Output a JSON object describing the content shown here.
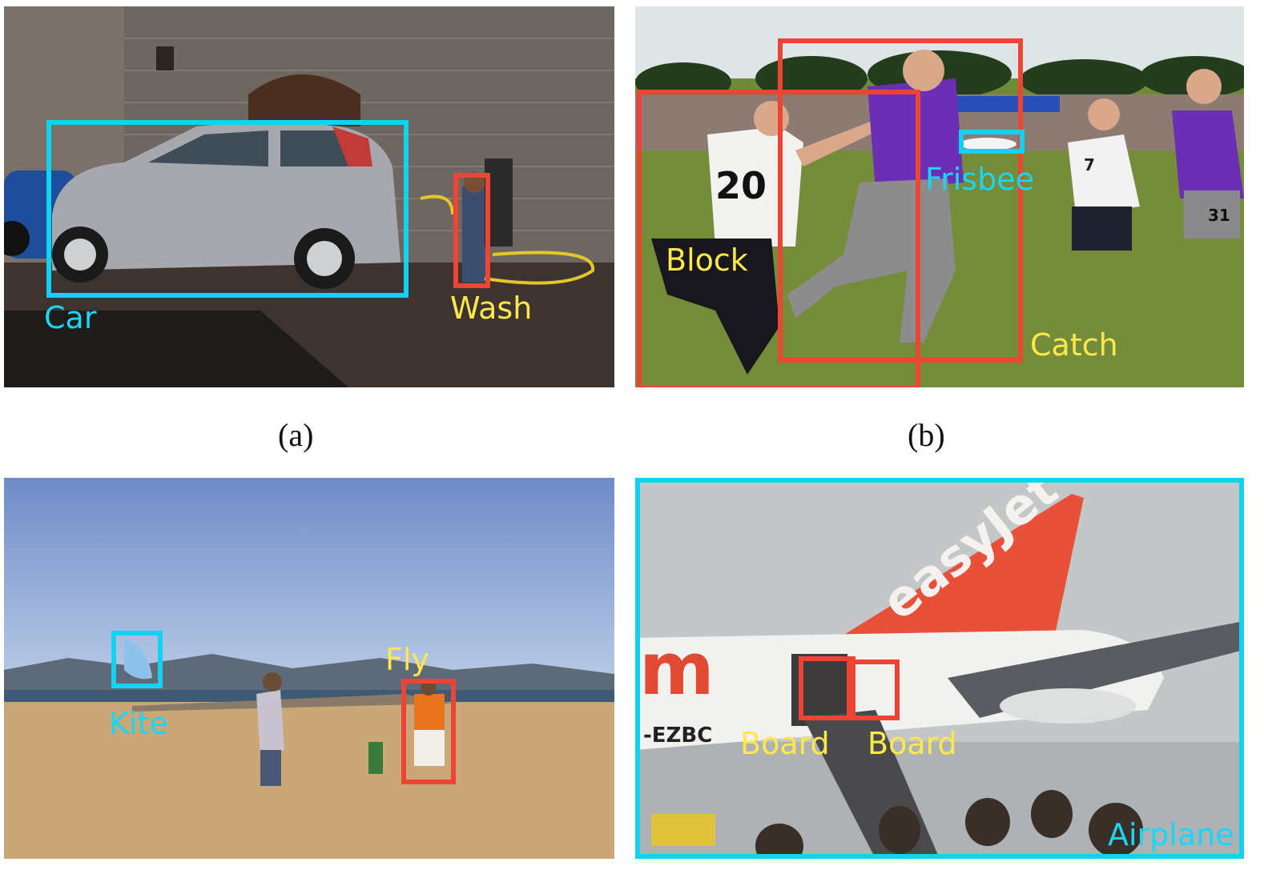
{
  "figure": {
    "captions": {
      "a": "(a)",
      "b": "(b)"
    },
    "panel_a": {
      "labels": {
        "car": "Car",
        "wash": "Wash"
      },
      "colors": {
        "object": "#11d2f0",
        "action": "#ee4433",
        "action_text": "#ffe84a"
      }
    },
    "panel_b": {
      "labels": {
        "block": "Block",
        "catch": "Catch",
        "frisbee": "Frisbee"
      },
      "jersey_numbers": {
        "front": "20",
        "middle": "7",
        "right": "31"
      }
    },
    "panel_c": {
      "labels": {
        "kite": "Kite",
        "fly": "Fly"
      }
    },
    "panel_d": {
      "labels": {
        "board_1": "Board",
        "board_2": "Board",
        "airplane": "Airplane"
      },
      "tail_brand": "easyJet",
      "registration": "-EZBC",
      "fuselage_letter": "m"
    }
  }
}
